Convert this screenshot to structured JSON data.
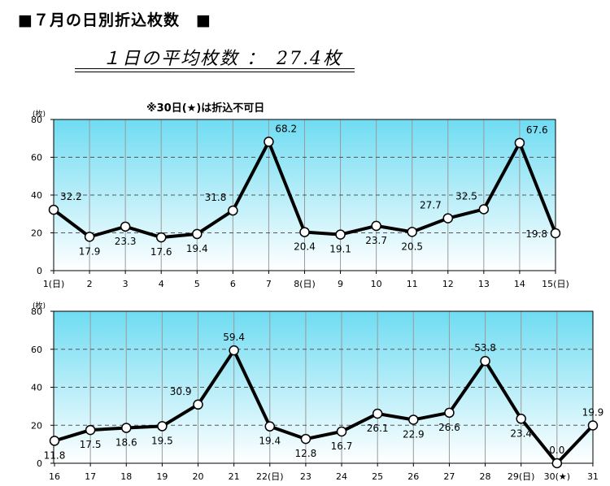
{
  "header": {
    "title": "■７月の日別折込枚数　■",
    "average_text": "１日の平均枚数 ：　27.4枚",
    "note": "※30日(★)は折込不可日"
  },
  "chart_data": [
    {
      "type": "line",
      "ylabel": "(枚)",
      "ylim": [
        0,
        80
      ],
      "yticks": [
        "0",
        "20",
        "40",
        "60",
        "80"
      ],
      "grid": true,
      "categories": [
        "1(日)",
        "2",
        "3",
        "4",
        "5",
        "6",
        "7",
        "8(日)",
        "9",
        "10",
        "11",
        "12",
        "13",
        "14",
        "15(日)"
      ],
      "values": [
        32.2,
        17.9,
        23.3,
        17.6,
        19.4,
        31.8,
        68.2,
        20.4,
        19.1,
        23.7,
        20.5,
        27.7,
        32.5,
        67.6,
        19.8
      ],
      "data_labels": [
        "32.2",
        "17.9",
        "23.3",
        "17.6",
        "19.4",
        "31.8",
        "68.2",
        "20.4",
        "19.1",
        "23.7",
        "20.5",
        "27.7",
        "32.5",
        "67.6",
        "19.8"
      ]
    },
    {
      "type": "line",
      "ylabel": "(枚)",
      "ylim": [
        0,
        80
      ],
      "yticks": [
        "0",
        "20",
        "40",
        "60",
        "80"
      ],
      "grid": true,
      "categories": [
        "16",
        "17",
        "18",
        "19",
        "20",
        "21",
        "22(日)",
        "23",
        "24",
        "25",
        "26",
        "27",
        "28",
        "29(日)",
        "30(★)",
        "31"
      ],
      "values": [
        11.8,
        17.5,
        18.6,
        19.5,
        30.9,
        59.4,
        19.4,
        12.8,
        16.7,
        26.1,
        22.9,
        26.6,
        53.8,
        23.4,
        0.0,
        19.9
      ],
      "data_labels": [
        "11.8",
        "17.5",
        "18.6",
        "19.5",
        "30.9",
        "59.4",
        "19.4",
        "12.8",
        "16.7",
        "26.1",
        "22.9",
        "26.6",
        "53.8",
        "23.4",
        "0.0",
        "19.9"
      ]
    }
  ]
}
